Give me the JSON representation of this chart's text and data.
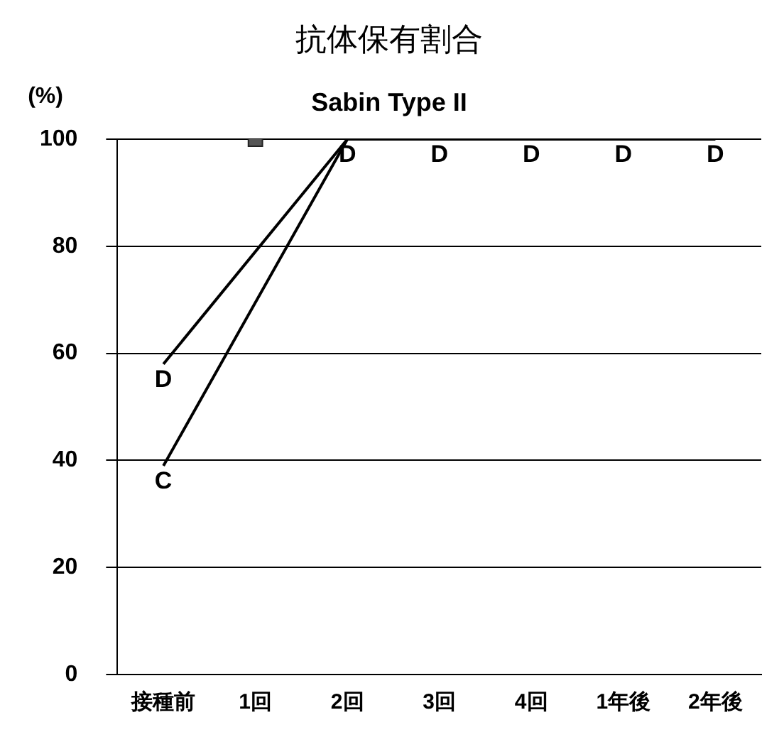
{
  "chart_data": {
    "type": "line",
    "title": "抗体保有割合",
    "subtitle": "Sabin Type II",
    "ylabel": "(%)",
    "categories": [
      "接種前",
      "1回",
      "2回",
      "3回",
      "4回",
      "1年後",
      "2年後"
    ],
    "series": [
      {
        "name": "C",
        "color": "#000000",
        "values": [
          39,
          null,
          100,
          100,
          100,
          100,
          100
        ]
      },
      {
        "name": "D",
        "color": "#000000",
        "values": [
          58,
          null,
          100,
          100,
          100,
          100,
          100
        ]
      },
      {
        "type": "scatter",
        "color": "#555555",
        "x": [
          "1回"
        ],
        "values": [
          100
        ],
        "marker": "square"
      }
    ],
    "ylim": [
      0,
      100
    ],
    "yticks": [
      0,
      20,
      40,
      60,
      80,
      100
    ],
    "grid": "y",
    "legend": false,
    "line_style": "solid"
  }
}
